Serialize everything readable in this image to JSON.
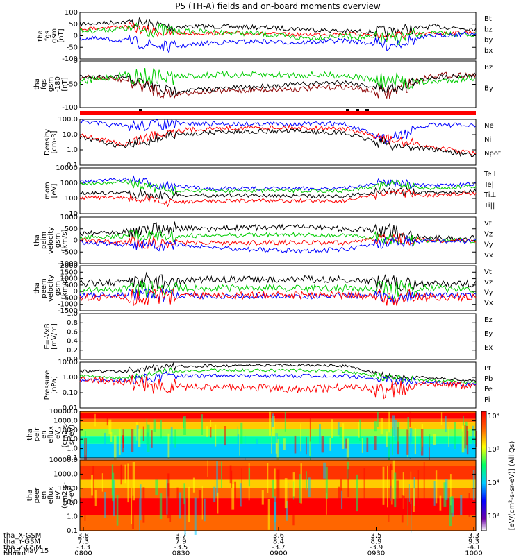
{
  "title": "P5 (TH-A) fields and on-board moments overview",
  "panels": [
    {
      "id": "fgs_bxyz",
      "ylabel": [
        "tha",
        "fgs",
        "gsm",
        "[nT]"
      ],
      "yticks": [
        "100",
        "50",
        "0",
        "-50",
        "-100"
      ],
      "ylim": [
        -100,
        100
      ],
      "legend": [
        {
          "t": "Bt",
          "c": "#000000"
        },
        {
          "t": "bz",
          "c": "#ff0000"
        },
        {
          "t": "by",
          "c": "#00cc00"
        },
        {
          "t": "bx",
          "c": "#0000ff"
        }
      ]
    },
    {
      "id": "fgs_angles",
      "ylabel": [
        "tha",
        "fgs",
        "gsm",
        "-180",
        "[nT]"
      ],
      "yticks": [
        "0",
        "-50",
        "-100"
      ],
      "ylim": [
        -120,
        30
      ],
      "legend": [
        {
          "t": "Bz",
          "c": "#8b0000"
        },
        {
          "t": "By",
          "c": "#00cc00"
        }
      ]
    },
    {
      "id": "density",
      "ylabel": [
        "Density",
        "[cm-3]"
      ],
      "yticks": [
        "100.0",
        "10.0",
        "1.0",
        "0.1"
      ],
      "log": true,
      "ylim": [
        0.1,
        200
      ],
      "legend": [
        {
          "t": "Ne",
          "c": "#ff0000"
        },
        {
          "t": "Ni",
          "c": "#000000"
        },
        {
          "t": "Npot",
          "c": "#0000ff"
        }
      ]
    },
    {
      "id": "temperature",
      "ylabel": [
        "mom",
        "[eV]"
      ],
      "yticks": [
        "10000",
        "1000",
        "100",
        "10"
      ],
      "log": true,
      "ylim": [
        5,
        20000
      ],
      "legend": [
        {
          "t": "Te⊥",
          "c": "#ff0000"
        },
        {
          "t": "Te||",
          "c": "#000000"
        },
        {
          "t": "Ti⊥",
          "c": "#0000ff"
        },
        {
          "t": "Ti||",
          "c": "#00cc00"
        }
      ]
    },
    {
      "id": "peim_velocity",
      "ylabel": [
        "tha",
        "peim",
        "velocity",
        "gsm",
        "[km/s]"
      ],
      "yticks": [
        "1000",
        "500",
        "0",
        "-500",
        "-1000"
      ],
      "ylim": [
        -1000,
        1000
      ],
      "legend": [
        {
          "t": "Vt",
          "c": "#000000"
        },
        {
          "t": "Vz",
          "c": "#ff0000"
        },
        {
          "t": "Vy",
          "c": "#00cc00"
        },
        {
          "t": "Vx",
          "c": "#0000ff"
        }
      ]
    },
    {
      "id": "peem_velocity",
      "ylabel": [
        "tha",
        "peem",
        "velocity",
        "gsm",
        "[km/s]"
      ],
      "yticks": [
        "2000",
        "1500",
        "1000",
        "500",
        "0",
        "-500",
        "-1000",
        "-1500"
      ],
      "ylim": [
        -1500,
        2000
      ],
      "legend": [
        {
          "t": "Vt",
          "c": "#000000"
        },
        {
          "t": "Vz",
          "c": "#ff0000"
        },
        {
          "t": "Vy",
          "c": "#00cc00"
        },
        {
          "t": "Vx",
          "c": "#0000ff"
        }
      ]
    },
    {
      "id": "efield",
      "ylabel": [
        "E=-VxB",
        "[mV/m]"
      ],
      "yticks": [
        "1.0",
        "0.8",
        "0.6",
        "0.4",
        "0.2",
        "0.0"
      ],
      "ylim": [
        0,
        1
      ],
      "legend": [
        {
          "t": "Ez",
          "c": "#ff0000"
        },
        {
          "t": "Ey",
          "c": "#00cc00"
        },
        {
          "t": "Ex",
          "c": "#0000ff"
        }
      ]
    },
    {
      "id": "pressure",
      "ylabel": [
        "Pressure",
        "[nPa]"
      ],
      "yticks": [
        "10.00",
        "1.00",
        "0.10",
        "0.01"
      ],
      "log": true,
      "ylim": [
        0.01,
        10
      ],
      "legend": [
        {
          "t": "Pt",
          "c": "#000000"
        },
        {
          "t": "Pb",
          "c": "#ff0000"
        },
        {
          "t": "Pe",
          "c": "#00cc00"
        },
        {
          "t": "Pi",
          "c": "#0000ff"
        }
      ]
    },
    {
      "id": "peir_spec",
      "ylabel": [
        "tha",
        "peir",
        "en",
        "eflux",
        "eV",
        "(cm2-s-",
        "sr-eV)"
      ],
      "yticks": [
        "10000.0",
        "1000.0",
        "100.0",
        "10.0",
        "1.0",
        "0.1"
      ],
      "spectrogram": true
    },
    {
      "id": "peer_spec",
      "ylabel": [
        "tha",
        "peer",
        "en",
        "eflux",
        "eV",
        "(cm2-s-",
        "sr-eV)"
      ],
      "yticks": [
        "10000.0",
        "1000.0",
        "100.0",
        "10.0",
        "1.0",
        "0.1"
      ],
      "spectrogram": true
    }
  ],
  "colorbar": {
    "ticks": [
      "10⁸",
      "10⁶",
      "10⁴",
      "10²"
    ],
    "label": "[eV/(cm²-s-sr-eV)] (All Qs)"
  },
  "xaxis": {
    "rows": [
      {
        "label": "tha_X-GSM",
        "values": [
          "3.8",
          "3.7",
          "3.6",
          "3.5",
          "3.3"
        ]
      },
      {
        "label": "tha_Y-GSM",
        "values": [
          "7.3",
          "7.9",
          "8.4",
          "8.9",
          "9.3"
        ]
      },
      {
        "label": "tha_Z-GSM",
        "values": [
          "-3.3",
          "-3.5",
          "-3.7",
          "-3.9",
          "-4.1"
        ]
      },
      {
        "label": "hhmm",
        "values": [
          "0800",
          "0830",
          "0900",
          "0930",
          "1000"
        ]
      }
    ],
    "date": "2017 May 15"
  },
  "chart_data": {
    "type": "line",
    "title": "P5 (TH-A) fields and on-board moments overview",
    "x": [
      "0800",
      "0830",
      "0900",
      "0930",
      "1000"
    ],
    "series": [
      {
        "name": "Bt",
        "values": [
          60,
          50,
          45,
          40,
          35
        ]
      },
      {
        "name": "bz",
        "values": [
          40,
          35,
          35,
          30,
          30
        ]
      },
      {
        "name": "by",
        "values": [
          20,
          15,
          15,
          5,
          15
        ]
      },
      {
        "name": "bx",
        "values": [
          -10,
          -20,
          -15,
          -15,
          15
        ]
      },
      {
        "name": "Ne",
        "values": [
          10,
          30,
          30,
          20,
          0.8
        ]
      },
      {
        "name": "Ni",
        "values": [
          5,
          15,
          15,
          10,
          0.7
        ]
      },
      {
        "name": "Vt",
        "values": [
          200,
          400,
          500,
          200,
          100
        ]
      },
      {
        "name": "Pt",
        "values": [
          2,
          3,
          3,
          2,
          1
        ]
      }
    ]
  }
}
